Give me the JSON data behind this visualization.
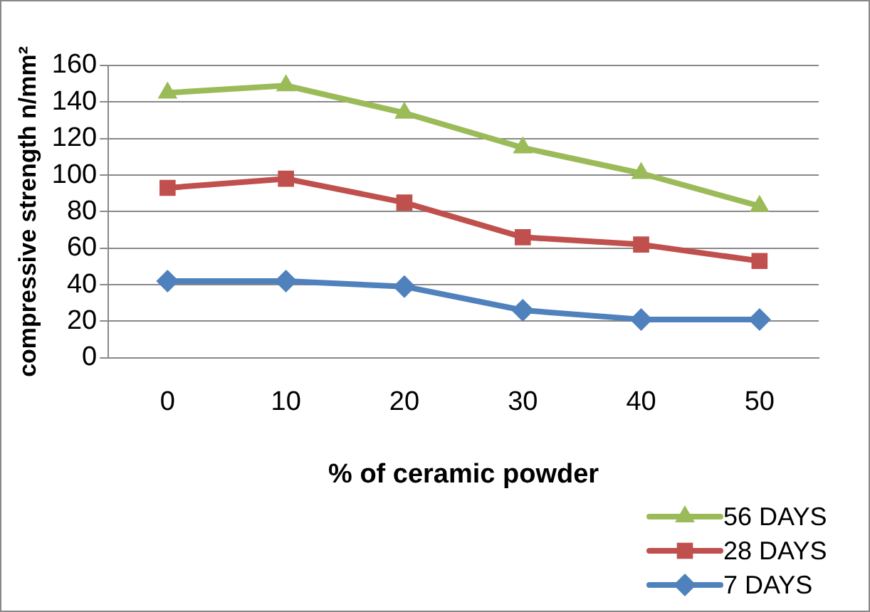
{
  "chart_data": {
    "type": "line",
    "xlabel": "% of ceramic powder",
    "ylabel": "compressive strength n/mm²",
    "categories": [
      "0",
      "10",
      "20",
      "30",
      "40",
      "50"
    ],
    "series": [
      {
        "name": "56 DAYS",
        "color": "#9bbb59",
        "marker": "triangle",
        "values": [
          145,
          149,
          134,
          115,
          101,
          83
        ]
      },
      {
        "name": "28 DAYS",
        "color": "#c0504d",
        "marker": "square",
        "values": [
          93,
          98,
          85,
          66,
          62,
          53
        ]
      },
      {
        "name": "7 DAYS",
        "color": "#4f81bd",
        "marker": "diamond",
        "values": [
          42,
          42,
          39,
          26,
          21,
          21
        ]
      }
    ],
    "ylim": [
      0,
      160
    ],
    "yticks": [
      0,
      20,
      40,
      60,
      80,
      100,
      120,
      140,
      160
    ],
    "grid": "y",
    "legend": "bottom right"
  }
}
